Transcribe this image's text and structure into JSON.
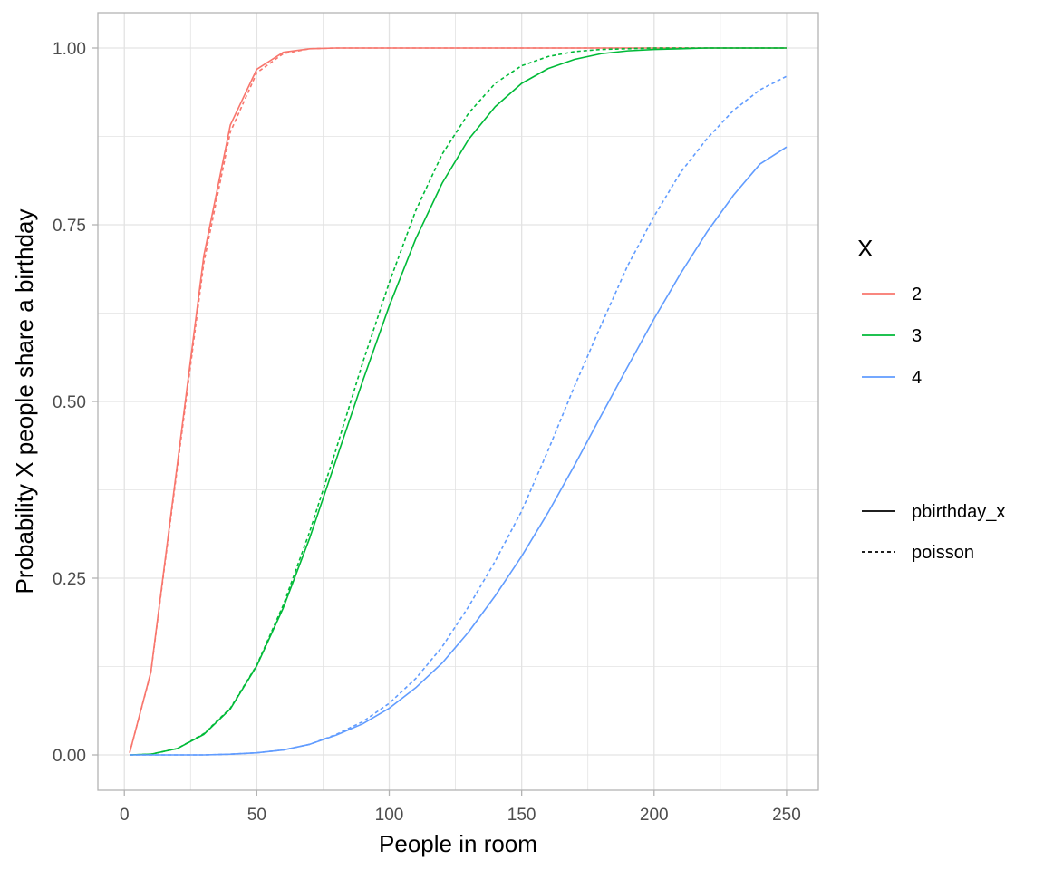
{
  "chart_data": {
    "type": "line",
    "title": "",
    "xlabel": "People in room",
    "ylabel": "Probability X people share a birthday",
    "xlim": [
      -10,
      262
    ],
    "ylim": [
      -0.05,
      1.05
    ],
    "x_ticks": [
      0,
      50,
      100,
      150,
      200,
      250
    ],
    "x_tick_labels": [
      "0",
      "50",
      "100",
      "150",
      "200",
      "250"
    ],
    "y_ticks": [
      0,
      0.25,
      0.5,
      0.75,
      1
    ],
    "y_tick_labels": [
      "0.00",
      "0.25",
      "0.50",
      "0.75",
      "1.00"
    ],
    "grid": true,
    "legend_placement": "right",
    "legend": {
      "color_title": "X",
      "color_entries": [
        {
          "label": "2",
          "color": "#F8766D"
        },
        {
          "label": "3",
          "color": "#00BA38"
        },
        {
          "label": "4",
          "color": "#619CFF"
        }
      ],
      "linetype_entries": [
        {
          "label": "pbirthday_x",
          "linetype": "solid"
        },
        {
          "label": "poisson",
          "linetype": "dashed"
        }
      ]
    },
    "x": [
      2,
      10,
      20,
      30,
      40,
      50,
      60,
      70,
      80,
      90,
      100,
      110,
      120,
      130,
      140,
      150,
      160,
      170,
      180,
      190,
      200,
      210,
      220,
      230,
      240,
      250
    ],
    "series": [
      {
        "x_group": "2",
        "linetype": "pbirthday_x",
        "color": "#F8766D",
        "values": [
          0.003,
          0.117,
          0.411,
          0.706,
          0.891,
          0.97,
          0.994,
          0.999,
          1.0,
          1.0,
          1.0,
          1.0,
          1.0,
          1.0,
          1.0,
          1.0,
          1.0,
          1.0,
          1.0,
          1.0,
          1.0,
          1.0,
          1.0,
          1.0,
          1.0,
          1.0
        ]
      },
      {
        "x_group": "2",
        "linetype": "poisson",
        "color": "#F8766D",
        "values": [
          0.003,
          0.116,
          0.406,
          0.696,
          0.881,
          0.965,
          0.992,
          0.999,
          1.0,
          1.0,
          1.0,
          1.0,
          1.0,
          1.0,
          1.0,
          1.0,
          1.0,
          1.0,
          1.0,
          1.0,
          1.0,
          1.0,
          1.0,
          1.0,
          1.0,
          1.0
        ]
      },
      {
        "x_group": "3",
        "linetype": "pbirthday_x",
        "color": "#00BA38",
        "values": [
          0.0,
          0.001,
          0.009,
          0.029,
          0.065,
          0.126,
          0.208,
          0.307,
          0.418,
          0.529,
          0.635,
          0.73,
          0.809,
          0.871,
          0.917,
          0.95,
          0.971,
          0.984,
          0.992,
          0.996,
          0.998,
          0.999,
          1.0,
          1.0,
          1.0,
          1.0
        ]
      },
      {
        "x_group": "3",
        "linetype": "poisson",
        "color": "#00BA38",
        "values": [
          0.0,
          0.001,
          0.009,
          0.03,
          0.066,
          0.127,
          0.212,
          0.316,
          0.433,
          0.555,
          0.668,
          0.77,
          0.85,
          0.908,
          0.95,
          0.975,
          0.988,
          0.995,
          0.998,
          0.999,
          1.0,
          1.0,
          1.0,
          1.0,
          1.0,
          1.0
        ]
      },
      {
        "x_group": "4",
        "linetype": "pbirthday_x",
        "color": "#619CFF",
        "values": [
          0.0,
          0.0,
          0.0,
          0.0,
          0.001,
          0.003,
          0.007,
          0.015,
          0.028,
          0.044,
          0.066,
          0.095,
          0.13,
          0.174,
          0.225,
          0.281,
          0.343,
          0.41,
          0.48,
          0.549,
          0.617,
          0.681,
          0.74,
          0.792,
          0.836,
          0.86
        ]
      },
      {
        "x_group": "4",
        "linetype": "poisson",
        "color": "#619CFF",
        "values": [
          0.0,
          0.0,
          0.0,
          0.0,
          0.001,
          0.003,
          0.007,
          0.015,
          0.029,
          0.047,
          0.073,
          0.108,
          0.153,
          0.21,
          0.274,
          0.345,
          0.431,
          0.522,
          0.608,
          0.692,
          0.762,
          0.824,
          0.872,
          0.912,
          0.941,
          0.96
        ]
      }
    ]
  }
}
